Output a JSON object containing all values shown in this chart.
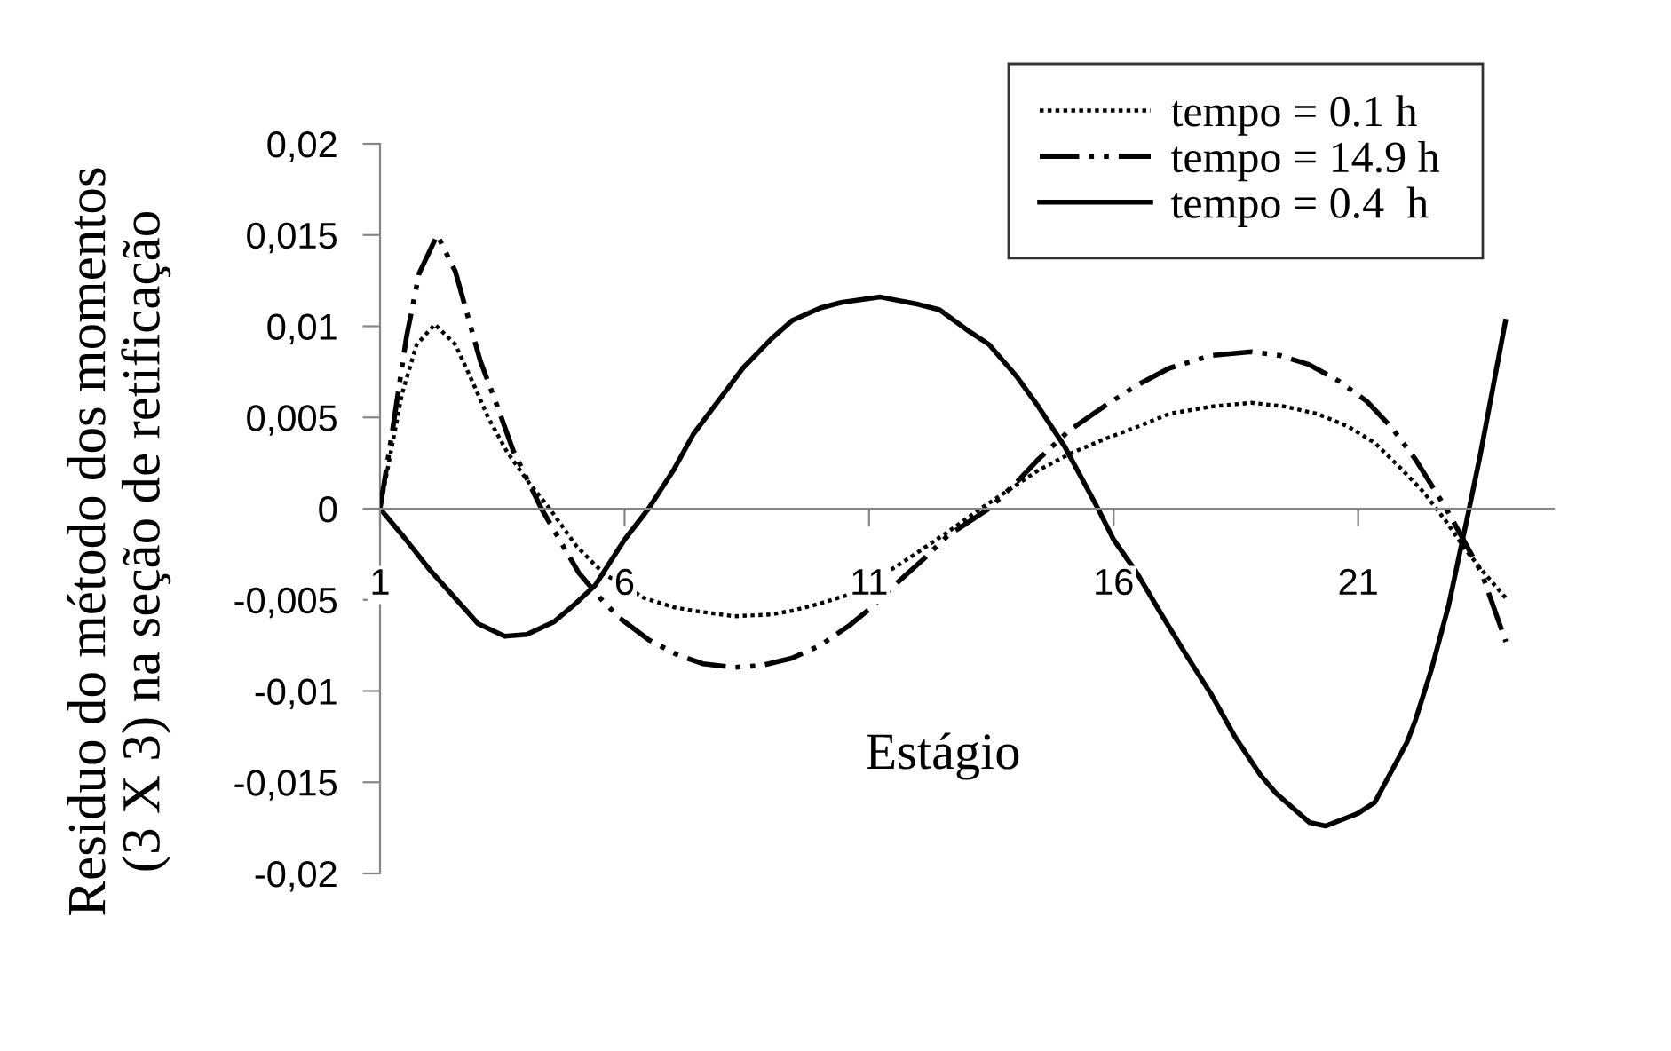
{
  "chart_data": {
    "type": "line",
    "xlabel": "Estágio",
    "ylabel": "Residuo do método dos momentos\n(3 X 3) na seção de retificação",
    "xlim": [
      1,
      25
    ],
    "xticks": [
      1,
      6,
      11,
      16,
      21
    ],
    "ylim": [
      -0.02,
      0.02
    ],
    "yticks": [
      {
        "value": -0.02,
        "label": "-0,02"
      },
      {
        "value": -0.015,
        "label": "-0,015"
      },
      {
        "value": -0.01,
        "label": "-0,01"
      },
      {
        "value": -0.005,
        "label": "-0,005"
      },
      {
        "value": 0,
        "label": "0"
      },
      {
        "value": 0.005,
        "label": "0,005"
      },
      {
        "value": 0.01,
        "label": "0,01"
      },
      {
        "value": 0.015,
        "label": "0,015"
      },
      {
        "value": 0.02,
        "label": "0,02"
      }
    ],
    "grid": false,
    "legend": "top right",
    "marker": "none",
    "series": [
      {
        "name": "tempo = 0.1 h",
        "color": "#000000",
        "line_style": "dotted",
        "x": [
          1,
          1.45,
          1.75,
          2.12,
          2.54,
          2.9,
          3.21,
          3.6,
          4.05,
          4.47,
          5,
          5.4,
          5.6,
          6.4,
          7,
          7.41,
          8.25,
          9,
          9.42,
          10,
          10.6,
          11.6,
          12.1,
          12.6,
          13.28,
          13.9,
          14.46,
          15.1,
          15.8,
          16.5,
          17.14,
          18,
          18.82,
          19.5,
          20.16,
          20.8,
          21.34,
          21.8,
          22.34,
          22.8,
          23.18,
          23.6,
          24.02
        ],
        "values": [
          0,
          0.0063,
          0.009,
          0.0101,
          0.009,
          0.0069,
          0.005,
          0.0031,
          0.0014,
          0,
          -0.002,
          -0.0031,
          -0.0036,
          -0.0049,
          -0.0054,
          -0.0056,
          -0.0059,
          -0.0058,
          -0.0056,
          -0.0052,
          -0.0047,
          -0.0031,
          -0.0022,
          -0.0013,
          0,
          0.0011,
          0.0021,
          0.003,
          0.0038,
          0.0045,
          0.0052,
          0.0056,
          0.0058,
          0.0056,
          0.0052,
          0.0045,
          0.0036,
          0.0024,
          0.0009,
          -0.0007,
          -0.0022,
          -0.0036,
          -0.0049
        ]
      },
      {
        "name": "tempo = 14.9 h",
        "color": "#000000",
        "line_style": "dashdot",
        "x": [
          1,
          1.25,
          1.54,
          1.8,
          2.17,
          2.54,
          3.05,
          3.4,
          3.72,
          4.3,
          5.06,
          5.5,
          5.9,
          6.5,
          7.07,
          7.6,
          8.25,
          8.8,
          9.42,
          10,
          10.6,
          11.1,
          11.6,
          12.1,
          12.6,
          13.45,
          14,
          14.46,
          15.1,
          15.8,
          16.5,
          17.14,
          18,
          18.82,
          19.4,
          19.99,
          20.6,
          21.17,
          21.7,
          22.17,
          22.8,
          23.52,
          24.02
        ],
        "values": [
          0,
          0.0042,
          0.0094,
          0.0129,
          0.015,
          0.013,
          0.0081,
          0.0056,
          0.0032,
          0,
          -0.0035,
          -0.0049,
          -0.006,
          -0.0072,
          -0.008,
          -0.0085,
          -0.0087,
          -0.0086,
          -0.0082,
          -0.0075,
          -0.0064,
          -0.0053,
          -0.004,
          -0.0028,
          -0.0015,
          0,
          0.0014,
          0.0027,
          0.0043,
          0.0056,
          0.0068,
          0.0077,
          0.0084,
          0.0086,
          0.0084,
          0.0079,
          0.007,
          0.0059,
          0.0044,
          0.0027,
          0,
          -0.0035,
          -0.0073
        ]
      },
      {
        "name": "tempo = 0.4  h",
        "color": "#000000",
        "line_style": "solid",
        "x": [
          1,
          1.5,
          2,
          2.5,
          3,
          3.55,
          4,
          4.56,
          5,
          5.4,
          6,
          6.49,
          7,
          7.41,
          8,
          8.42,
          9,
          9.42,
          10,
          10.43,
          11.23,
          12,
          12.44,
          13,
          13.45,
          14,
          14.46,
          15,
          15.68,
          16,
          16.47,
          17,
          17.48,
          18,
          18.48,
          19,
          19.32,
          20,
          20.33,
          21,
          21.34,
          22,
          22.17,
          22.5,
          22.85,
          23.27,
          23.5,
          24.02
        ],
        "values": [
          0,
          -0.0016,
          -0.0033,
          -0.0048,
          -0.0063,
          -0.007,
          -0.0069,
          -0.0062,
          -0.0052,
          -0.0042,
          -0.0017,
          0,
          0.0021,
          0.0041,
          0.0062,
          0.0077,
          0.0093,
          0.0103,
          0.011,
          0.0113,
          0.0116,
          0.0112,
          0.0109,
          0.0098,
          0.009,
          0.0073,
          0.0056,
          0.0034,
          0,
          -0.0017,
          -0.0035,
          -0.0059,
          -0.008,
          -0.0102,
          -0.0125,
          -0.0146,
          -0.0156,
          -0.0172,
          -0.0174,
          -0.0167,
          -0.0161,
          -0.0128,
          -0.0116,
          -0.0088,
          -0.0053,
          0,
          0.003,
          0.0104
        ]
      }
    ]
  }
}
